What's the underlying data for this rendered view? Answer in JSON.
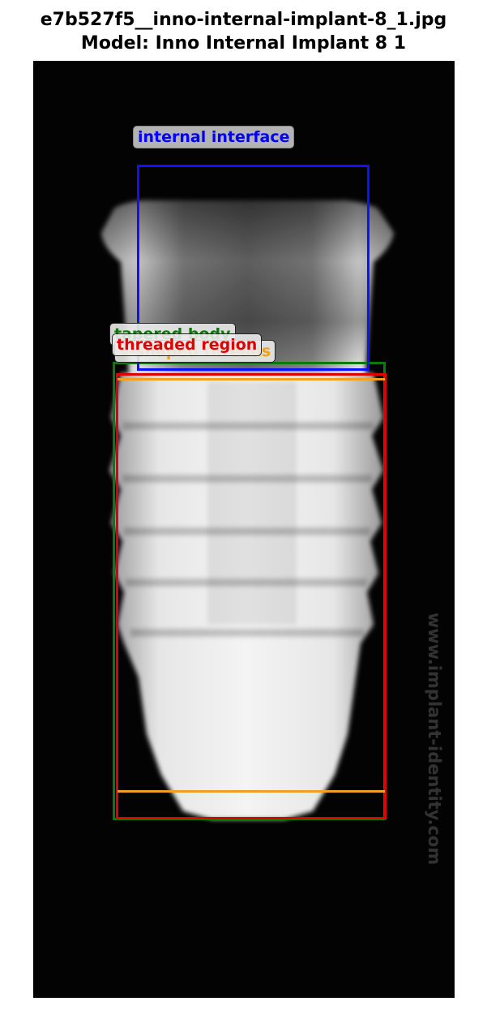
{
  "figure": {
    "title_line_1": "e7b527f5__inno-internal-implant-8_1.jpg",
    "title_line_2": "Model: Inno Internal Implant 8 1"
  },
  "image": {
    "subject": "dental implant radiograph",
    "watermark_text": "www.implant-identity.com"
  },
  "annotations": [
    {
      "id": "internal-interface",
      "label": "internal interface",
      "color": "#0000ff"
    },
    {
      "id": "tapered-body",
      "label": "tapered body",
      "color": "#0a7a0a"
    },
    {
      "id": "v-shaped-threads",
      "label": "v-shaped threads",
      "color": "#f0a020"
    },
    {
      "id": "threaded-region",
      "label": "threaded region",
      "color": "#e00000"
    }
  ]
}
